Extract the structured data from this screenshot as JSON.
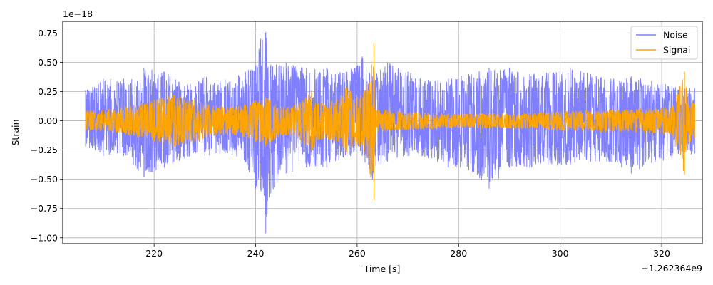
{
  "chart_data": {
    "type": "line",
    "title": "",
    "xlabel": "Time [s]",
    "ylabel": "Strain",
    "x_offset_label": "+1.262364e9",
    "y_scale_label": "1e−18",
    "xlim": [
      202,
      328
    ],
    "ylim": [
      -1.05,
      0.85
    ],
    "x_range": [
      206.5,
      326.5
    ],
    "x_ticks": [
      220,
      240,
      260,
      280,
      300,
      320
    ],
    "x_tick_labels": [
      "220",
      "240",
      "260",
      "280",
      "300",
      "320"
    ],
    "y_ticks": [
      -1.0,
      -0.75,
      -0.5,
      -0.25,
      0.0,
      0.25,
      0.5,
      0.75
    ],
    "y_tick_labels": [
      "−1.00",
      "−0.75",
      "−0.50",
      "−0.25",
      "0.00",
      "0.25",
      "0.50",
      "0.75"
    ],
    "grid": true,
    "legend_position": "top-right",
    "series": [
      {
        "name": "Noise",
        "color": "#7f7fff",
        "envelope": [
          {
            "x": 206.5,
            "min": -0.22,
            "max": 0.26
          },
          {
            "x": 210,
            "min": -0.3,
            "max": 0.36
          },
          {
            "x": 214,
            "min": -0.3,
            "max": 0.36
          },
          {
            "x": 218,
            "min": -0.48,
            "max": 0.45
          },
          {
            "x": 222,
            "min": -0.4,
            "max": 0.42
          },
          {
            "x": 226,
            "min": -0.32,
            "max": 0.3
          },
          {
            "x": 230,
            "min": -0.3,
            "max": 0.38
          },
          {
            "x": 234,
            "min": -0.28,
            "max": 0.35
          },
          {
            "x": 238,
            "min": -0.35,
            "max": 0.42
          },
          {
            "x": 240,
            "min": -0.58,
            "max": 0.47
          },
          {
            "x": 241,
            "min": -0.58,
            "max": 0.7
          },
          {
            "x": 242,
            "min": -0.96,
            "max": 0.76
          },
          {
            "x": 243,
            "min": -0.62,
            "max": 0.48
          },
          {
            "x": 246,
            "min": -0.45,
            "max": 0.5
          },
          {
            "x": 250,
            "min": -0.4,
            "max": 0.45
          },
          {
            "x": 254,
            "min": -0.4,
            "max": 0.45
          },
          {
            "x": 258,
            "min": -0.3,
            "max": 0.42
          },
          {
            "x": 261,
            "min": -0.3,
            "max": 0.55
          },
          {
            "x": 263,
            "min": -0.5,
            "max": 0.38
          },
          {
            "x": 266,
            "min": -0.35,
            "max": 0.5
          },
          {
            "x": 270,
            "min": -0.3,
            "max": 0.42
          },
          {
            "x": 274,
            "min": -0.32,
            "max": 0.35
          },
          {
            "x": 278,
            "min": -0.4,
            "max": 0.36
          },
          {
            "x": 282,
            "min": -0.42,
            "max": 0.4
          },
          {
            "x": 286,
            "min": -0.58,
            "max": 0.45
          },
          {
            "x": 290,
            "min": -0.4,
            "max": 0.45
          },
          {
            "x": 294,
            "min": -0.4,
            "max": 0.4
          },
          {
            "x": 298,
            "min": -0.38,
            "max": 0.42
          },
          {
            "x": 302,
            "min": -0.38,
            "max": 0.45
          },
          {
            "x": 306,
            "min": -0.35,
            "max": 0.4
          },
          {
            "x": 310,
            "min": -0.35,
            "max": 0.36
          },
          {
            "x": 314,
            "min": -0.45,
            "max": 0.38
          },
          {
            "x": 318,
            "min": -0.36,
            "max": 0.34
          },
          {
            "x": 322,
            "min": -0.32,
            "max": 0.3
          },
          {
            "x": 326.5,
            "min": -0.28,
            "max": 0.28
          }
        ]
      },
      {
        "name": "Signal",
        "color": "#ffa500",
        "envelope": [
          {
            "x": 206.5,
            "min": -0.08,
            "max": 0.09
          },
          {
            "x": 212,
            "min": -0.1,
            "max": 0.1
          },
          {
            "x": 216,
            "min": -0.13,
            "max": 0.13
          },
          {
            "x": 220,
            "min": -0.18,
            "max": 0.18
          },
          {
            "x": 224,
            "min": -0.22,
            "max": 0.22
          },
          {
            "x": 228,
            "min": -0.18,
            "max": 0.18
          },
          {
            "x": 232,
            "min": -0.13,
            "max": 0.13
          },
          {
            "x": 236,
            "min": -0.12,
            "max": 0.12
          },
          {
            "x": 240,
            "min": -0.18,
            "max": 0.17
          },
          {
            "x": 242,
            "min": -0.22,
            "max": 0.2
          },
          {
            "x": 245,
            "min": -0.12,
            "max": 0.12
          },
          {
            "x": 248,
            "min": -0.14,
            "max": 0.14
          },
          {
            "x": 251,
            "min": -0.26,
            "max": 0.26
          },
          {
            "x": 253,
            "min": -0.16,
            "max": 0.16
          },
          {
            "x": 256,
            "min": -0.18,
            "max": 0.18
          },
          {
            "x": 258,
            "min": -0.28,
            "max": 0.29
          },
          {
            "x": 260,
            "min": -0.2,
            "max": 0.2
          },
          {
            "x": 262,
            "min": -0.3,
            "max": 0.32
          },
          {
            "x": 263.3,
            "min": -0.68,
            "max": 0.66
          },
          {
            "x": 263.6,
            "min": -0.1,
            "max": 0.1
          },
          {
            "x": 268,
            "min": -0.08,
            "max": 0.08
          },
          {
            "x": 280,
            "min": -0.06,
            "max": 0.06
          },
          {
            "x": 295,
            "min": -0.07,
            "max": 0.07
          },
          {
            "x": 305,
            "min": -0.09,
            "max": 0.09
          },
          {
            "x": 315,
            "min": -0.1,
            "max": 0.1
          },
          {
            "x": 322,
            "min": -0.12,
            "max": 0.12
          },
          {
            "x": 324.5,
            "min": -0.46,
            "max": 0.42
          },
          {
            "x": 325,
            "min": -0.2,
            "max": 0.22
          },
          {
            "x": 326.5,
            "min": -0.15,
            "max": 0.15
          }
        ]
      }
    ]
  }
}
